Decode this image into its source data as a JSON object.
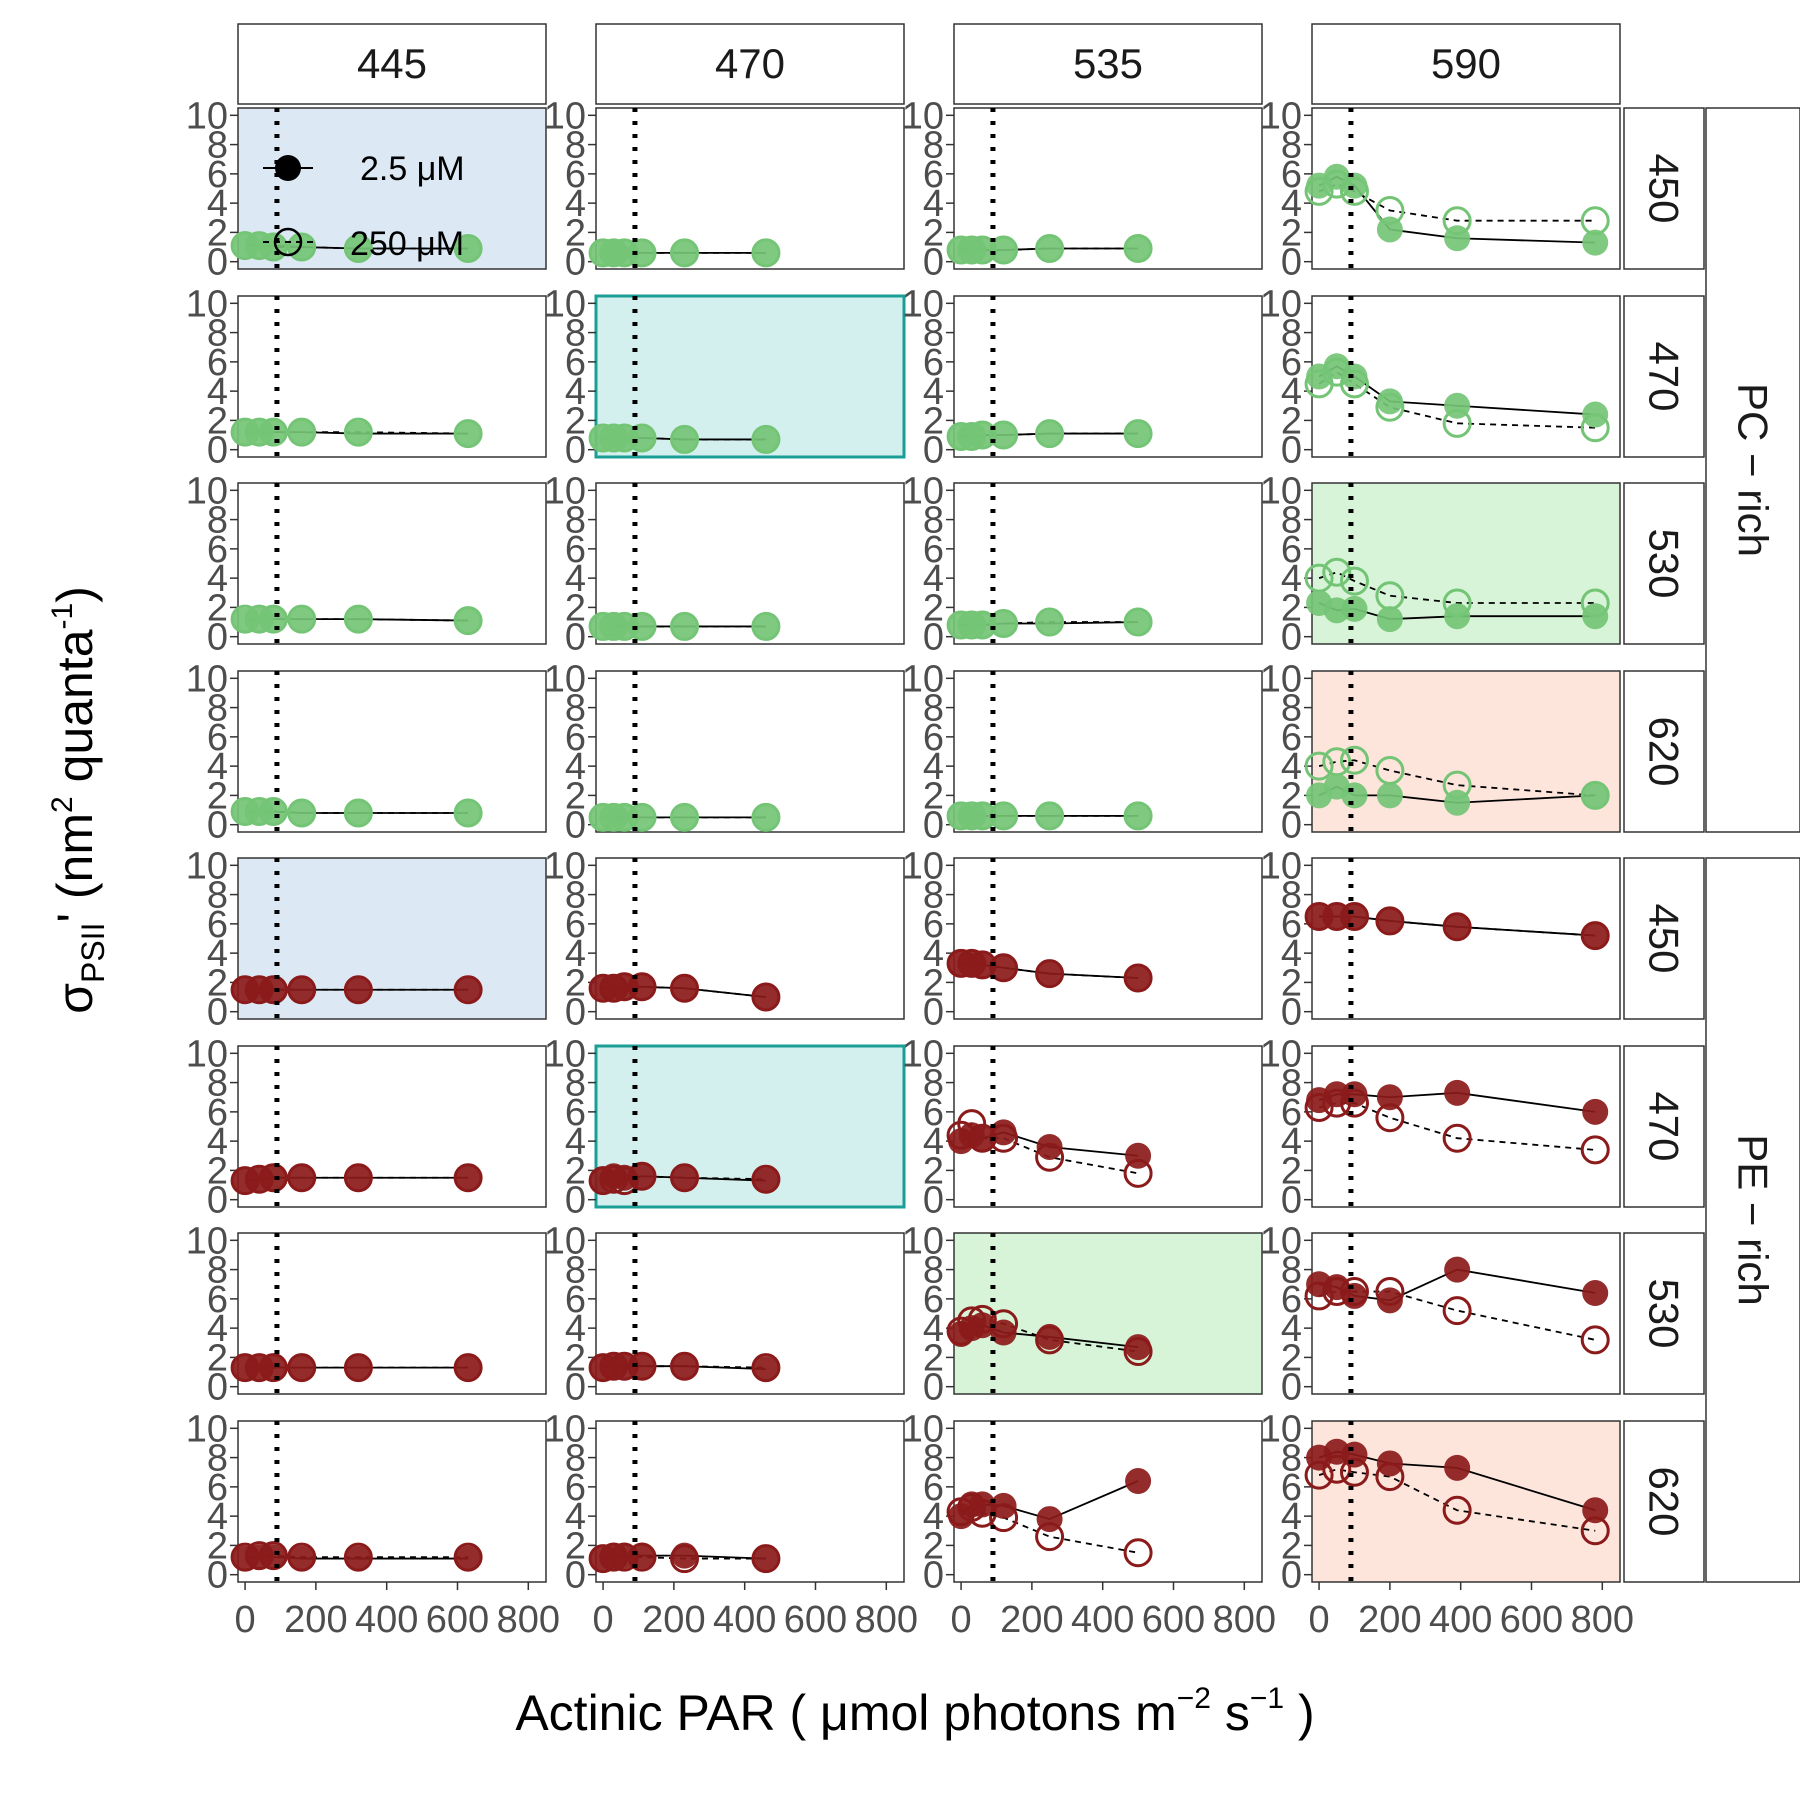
{
  "figure": {
    "ylabel": "σPSII' (nm² quanta⁻¹)",
    "ylabel_sigma": "σ",
    "ylabel_sub": "PSII",
    "ylabel_prime": "'",
    "ylabel_rest": " (nm",
    "ylabel_sup2": "2",
    "ylabel_rest2": " quanta",
    "ylabel_sup_neg1": "-1",
    "ylabel_close": ")",
    "xlabel": "Actinic PAR ( μmol photons  m⁻²  s⁻¹ )",
    "xlabel_main": "Actinic PAR ( μmol photons  m",
    "xlabel_sup_m": "−2",
    "xlabel_s": "  s",
    "xlabel_sup_s": "−1",
    "xlabel_close": " )"
  },
  "legend": {
    "entries": [
      {
        "label": "2.5 μM",
        "shape": "filled-circle",
        "line": "solid"
      },
      {
        "label": "250 μM",
        "shape": "open-circle",
        "line": "dashed"
      }
    ]
  },
  "colors": {
    "pc_rich": "#74c476",
    "pe_rich": "#8b1a1a",
    "bg_445": "#dce9f5",
    "bg_470": "#d3f0ee",
    "border_470": "#1a9e96",
    "bg_535": "#d8f4d8",
    "bg_590": "#fde5dc",
    "strip_bg": "#ffffff",
    "panel_border": "#333333"
  },
  "chart_data": {
    "type": "scatter",
    "facet_columns": [
      "445",
      "470",
      "535",
      "590"
    ],
    "facet_rows": [
      "450",
      "470",
      "530",
      "620",
      "450",
      "470",
      "530",
      "620"
    ],
    "row_groups": [
      {
        "label": "PC − rich",
        "rows": [
          0,
          1,
          2,
          3
        ]
      },
      {
        "label": "PE − rich",
        "rows": [
          4,
          5,
          6,
          7
        ]
      }
    ],
    "xlim": [
      -20,
      850
    ],
    "ylim": [
      -0.5,
      10.5
    ],
    "xticks": [
      0,
      200,
      400,
      600,
      800
    ],
    "yticks": [
      0,
      2,
      4,
      6,
      8,
      10
    ],
    "vline_x": 90,
    "x_values": {
      "445": [
        0,
        40,
        80,
        160,
        320,
        630
      ],
      "470": [
        0,
        30,
        60,
        110,
        230,
        460
      ],
      "535": [
        0,
        30,
        60,
        120,
        250,
        500
      ],
      "590": [
        0,
        50,
        100,
        200,
        390,
        780
      ]
    },
    "panels": [
      {
        "row": 0,
        "col": "445",
        "y_2_5": [
          1.2,
          1.1,
          1.1,
          1.0,
          0.9,
          0.9
        ],
        "y_250": [
          1.1,
          1.1,
          1.0,
          1.0,
          0.9,
          0.9
        ],
        "highlight": "445"
      },
      {
        "row": 0,
        "col": "470",
        "y_2_5": [
          0.6,
          0.6,
          0.6,
          0.6,
          0.6,
          0.6
        ],
        "y_250": [
          0.6,
          0.6,
          0.6,
          0.6,
          0.6,
          0.6
        ]
      },
      {
        "row": 0,
        "col": "535",
        "y_2_5": [
          0.8,
          0.8,
          0.8,
          0.8,
          0.9,
          0.9
        ],
        "y_250": [
          0.8,
          0.8,
          0.8,
          0.8,
          0.9,
          0.9
        ]
      },
      {
        "row": 0,
        "col": "590",
        "y_2_5": [
          5.2,
          5.8,
          5.2,
          2.2,
          1.6,
          1.3
        ],
        "y_250": [
          4.8,
          5.3,
          4.8,
          3.5,
          2.8,
          2.8
        ]
      },
      {
        "row": 1,
        "col": "445",
        "y_2_5": [
          1.2,
          1.2,
          1.2,
          1.2,
          1.1,
          1.1
        ],
        "y_250": [
          1.2,
          1.2,
          1.2,
          1.2,
          1.2,
          1.1
        ]
      },
      {
        "row": 1,
        "col": "470",
        "y_2_5": [
          0.8,
          0.8,
          0.8,
          0.8,
          0.7,
          0.7
        ],
        "y_250": [
          0.8,
          0.8,
          0.8,
          0.8,
          0.7,
          0.7
        ],
        "highlight": "470"
      },
      {
        "row": 1,
        "col": "535",
        "y_2_5": [
          0.9,
          0.9,
          1.0,
          1.0,
          1.1,
          1.1
        ],
        "y_250": [
          0.9,
          0.9,
          1.0,
          1.0,
          1.1,
          1.1
        ]
      },
      {
        "row": 1,
        "col": "590",
        "y_2_5": [
          5.0,
          5.7,
          5.0,
          3.3,
          3.0,
          2.4
        ],
        "y_250": [
          4.5,
          5.3,
          4.5,
          2.9,
          1.8,
          1.5
        ]
      },
      {
        "row": 2,
        "col": "445",
        "y_2_5": [
          1.1,
          1.2,
          1.2,
          1.2,
          1.2,
          1.1
        ],
        "y_250": [
          1.2,
          1.2,
          1.2,
          1.2,
          1.2,
          1.1
        ]
      },
      {
        "row": 2,
        "col": "470",
        "y_2_5": [
          0.7,
          0.7,
          0.7,
          0.7,
          0.7,
          0.7
        ],
        "y_250": [
          0.7,
          0.7,
          0.7,
          0.7,
          0.7,
          0.7
        ]
      },
      {
        "row": 2,
        "col": "535",
        "y_2_5": [
          0.8,
          0.8,
          0.8,
          0.9,
          0.9,
          1.0
        ],
        "y_250": [
          0.8,
          0.8,
          0.8,
          0.9,
          1.0,
          1.0
        ]
      },
      {
        "row": 2,
        "col": "590",
        "y_2_5": [
          2.3,
          1.8,
          1.9,
          1.2,
          1.4,
          1.4
        ],
        "y_250": [
          4.0,
          4.4,
          3.8,
          2.8,
          2.3,
          2.3
        ],
        "highlight": "535"
      },
      {
        "row": 3,
        "col": "445",
        "y_2_5": [
          0.9,
          0.9,
          0.9,
          0.8,
          0.8,
          0.8
        ],
        "y_250": [
          0.9,
          0.9,
          0.9,
          0.8,
          0.8,
          0.8
        ]
      },
      {
        "row": 3,
        "col": "470",
        "y_2_5": [
          0.5,
          0.5,
          0.5,
          0.5,
          0.5,
          0.5
        ],
        "y_250": [
          0.5,
          0.5,
          0.5,
          0.5,
          0.5,
          0.5
        ]
      },
      {
        "row": 3,
        "col": "535",
        "y_2_5": [
          0.6,
          0.6,
          0.6,
          0.6,
          0.6,
          0.6
        ],
        "y_250": [
          0.6,
          0.6,
          0.6,
          0.6,
          0.6,
          0.6
        ]
      },
      {
        "row": 3,
        "col": "590",
        "y_2_5": [
          2.0,
          2.6,
          2.0,
          2.0,
          1.5,
          2.0
        ],
        "y_250": [
          4.0,
          4.3,
          4.4,
          3.7,
          2.7,
          2.0
        ],
        "highlight": "590"
      },
      {
        "row": 4,
        "col": "445",
        "y_2_5": [
          1.5,
          1.5,
          1.5,
          1.5,
          1.5,
          1.5
        ],
        "y_250": [
          1.5,
          1.5,
          1.5,
          1.5,
          1.5,
          1.5
        ],
        "highlight": "445"
      },
      {
        "row": 4,
        "col": "470",
        "y_2_5": [
          1.6,
          1.6,
          1.7,
          1.7,
          1.6,
          1.0
        ],
        "y_250": [
          1.6,
          1.6,
          1.7,
          1.7,
          1.6,
          1.0
        ]
      },
      {
        "row": 4,
        "col": "535",
        "y_2_5": [
          3.3,
          3.3,
          3.2,
          3.0,
          2.6,
          2.3
        ],
        "y_250": [
          3.3,
          3.3,
          3.2,
          3.0,
          2.6,
          2.3
        ]
      },
      {
        "row": 4,
        "col": "590",
        "y_2_5": [
          6.5,
          6.5,
          6.5,
          6.2,
          5.8,
          5.2
        ],
        "y_250": [
          6.5,
          6.5,
          6.5,
          6.2,
          5.8,
          5.2
        ]
      },
      {
        "row": 5,
        "col": "445",
        "y_2_5": [
          1.3,
          1.4,
          1.5,
          1.5,
          1.5,
          1.5
        ],
        "y_250": [
          1.3,
          1.4,
          1.5,
          1.5,
          1.5,
          1.5
        ]
      },
      {
        "row": 5,
        "col": "470",
        "y_2_5": [
          1.4,
          1.6,
          1.5,
          1.6,
          1.5,
          1.3
        ],
        "y_250": [
          1.3,
          1.4,
          1.3,
          1.6,
          1.5,
          1.4
        ],
        "highlight": "470"
      },
      {
        "row": 5,
        "col": "535",
        "y_2_5": [
          4.0,
          4.4,
          4.2,
          4.6,
          3.6,
          3.0
        ],
        "y_250": [
          4.4,
          5.2,
          4.2,
          4.2,
          2.9,
          1.8
        ]
      },
      {
        "row": 5,
        "col": "590",
        "y_2_5": [
          6.8,
          7.2,
          7.2,
          7.0,
          7.3,
          6.0
        ],
        "y_250": [
          6.3,
          6.6,
          6.6,
          5.6,
          4.2,
          3.4
        ]
      },
      {
        "row": 6,
        "col": "445",
        "y_2_5": [
          1.3,
          1.3,
          1.3,
          1.3,
          1.3,
          1.3
        ],
        "y_250": [
          1.3,
          1.3,
          1.3,
          1.3,
          1.3,
          1.3
        ]
      },
      {
        "row": 6,
        "col": "470",
        "y_2_5": [
          1.3,
          1.4,
          1.4,
          1.4,
          1.4,
          1.2
        ],
        "y_250": [
          1.3,
          1.4,
          1.4,
          1.4,
          1.4,
          1.3
        ]
      },
      {
        "row": 6,
        "col": "535",
        "y_2_5": [
          3.6,
          4.0,
          4.2,
          3.7,
          3.4,
          2.7
        ],
        "y_250": [
          3.8,
          4.5,
          4.6,
          4.3,
          3.2,
          2.4
        ],
        "highlight": "535"
      },
      {
        "row": 6,
        "col": "590",
        "y_2_5": [
          7.0,
          6.8,
          6.2,
          5.9,
          8.0,
          6.4
        ],
        "y_250": [
          6.2,
          6.5,
          6.5,
          6.5,
          5.2,
          3.2
        ]
      },
      {
        "row": 7,
        "col": "445",
        "y_2_5": [
          1.1,
          1.2,
          1.2,
          1.1,
          1.1,
          1.1
        ],
        "y_250": [
          1.2,
          1.3,
          1.3,
          1.2,
          1.2,
          1.2
        ]
      },
      {
        "row": 7,
        "col": "470",
        "y_2_5": [
          1.1,
          1.3,
          1.3,
          1.3,
          1.3,
          1.1
        ],
        "y_250": [
          1.1,
          1.2,
          1.2,
          1.2,
          1.1,
          1.1
        ]
      },
      {
        "row": 7,
        "col": "535",
        "y_2_5": [
          4.0,
          4.8,
          4.8,
          4.7,
          3.8,
          6.4
        ],
        "y_250": [
          4.3,
          4.6,
          4.2,
          3.9,
          2.6,
          1.5
        ]
      },
      {
        "row": 7,
        "col": "590",
        "y_2_5": [
          8.0,
          8.4,
          8.2,
          7.6,
          7.3,
          4.4
        ],
        "y_250": [
          6.8,
          7.2,
          7.0,
          6.7,
          4.4,
          3.0
        ],
        "highlight": "590"
      }
    ]
  }
}
